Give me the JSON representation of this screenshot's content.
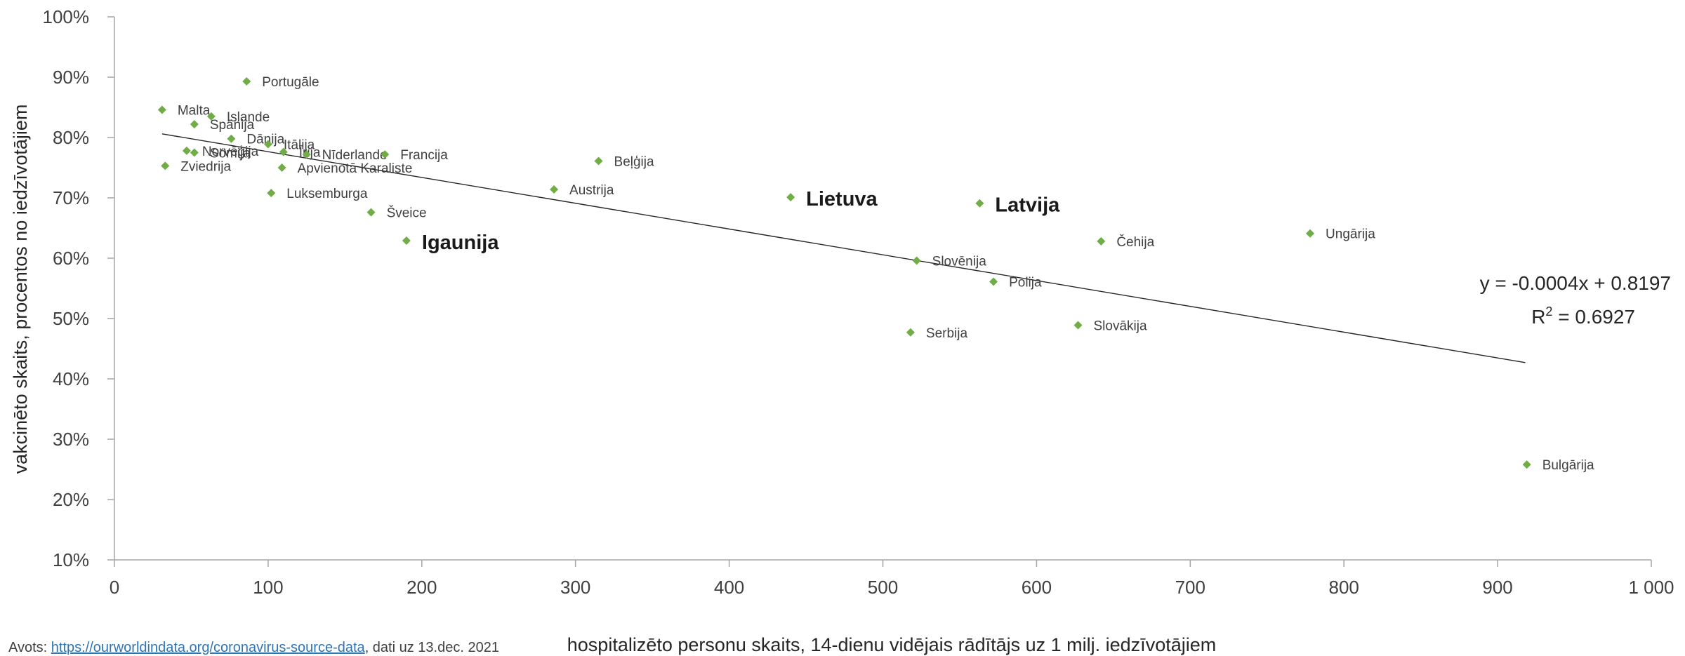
{
  "chart_data": {
    "type": "scatter",
    "title": "",
    "xlabel": "hospitalizēto personu skaits, 14-dienu vidējais rādītājs uz 1 milj. iedzīvotājiem",
    "ylabel": "vakcinēto skaits, procentos no iedzīvotājiem",
    "xlim": [
      0,
      1000
    ],
    "ylim": [
      10,
      100
    ],
    "x_ticks": [
      0,
      100,
      200,
      300,
      400,
      500,
      600,
      700,
      800,
      900,
      1000
    ],
    "x_tick_labels": [
      "0",
      "100",
      "200",
      "300",
      "400",
      "500",
      "600",
      "700",
      "800",
      "900",
      "1 000"
    ],
    "y_ticks": [
      10,
      20,
      30,
      40,
      50,
      60,
      70,
      80,
      90,
      100
    ],
    "y_tick_labels": [
      "10%",
      "20%",
      "30%",
      "40%",
      "50%",
      "60%",
      "70%",
      "80%",
      "90%",
      "100%"
    ],
    "grid": false,
    "color": "#70ad47",
    "points": [
      {
        "label": "Malta",
        "x": 31,
        "y": 84.6
      },
      {
        "label": "Portugāle",
        "x": 86,
        "y": 89.3
      },
      {
        "label": "Islande",
        "x": 63,
        "y": 83.5
      },
      {
        "label": "Spānija",
        "x": 52,
        "y": 82.2
      },
      {
        "label": "Dānija",
        "x": 76,
        "y": 79.8
      },
      {
        "label": "Itālija",
        "x": 100,
        "y": 78.9
      },
      {
        "label": "Īrija",
        "x": 110,
        "y": 77.6
      },
      {
        "label": "Nīderlande",
        "x": 125,
        "y": 77.2
      },
      {
        "label": "Norvēģija",
        "x": 47,
        "y": 77.8
      },
      {
        "label": "Somija",
        "x": 52,
        "y": 77.5
      },
      {
        "label": "Zviedrija",
        "x": 33,
        "y": 75.3
      },
      {
        "label": "Apvienotā Karaliste",
        "x": 109,
        "y": 75.0
      },
      {
        "label": "Francija",
        "x": 176,
        "y": 77.2
      },
      {
        "label": "Beļģija",
        "x": 315,
        "y": 76.1
      },
      {
        "label": "Luksemburga",
        "x": 102,
        "y": 70.8
      },
      {
        "label": "Austrija",
        "x": 286,
        "y": 71.4
      },
      {
        "label": "Šveice",
        "x": 167,
        "y": 67.6
      },
      {
        "label": "Igaunija",
        "x": 190,
        "y": 62.9,
        "bold": true
      },
      {
        "label": "Lietuva",
        "x": 440,
        "y": 70.1,
        "bold": true
      },
      {
        "label": "Latvija",
        "x": 563,
        "y": 69.1,
        "bold": true
      },
      {
        "label": "Čehija",
        "x": 642,
        "y": 62.8
      },
      {
        "label": "Ungārija",
        "x": 778,
        "y": 64.1
      },
      {
        "label": "Slovēnija",
        "x": 522,
        "y": 59.6
      },
      {
        "label": "Polija",
        "x": 572,
        "y": 56.1
      },
      {
        "label": "Slovākija",
        "x": 627,
        "y": 48.9
      },
      {
        "label": "Serbija",
        "x": 518,
        "y": 47.7
      },
      {
        "label": "Bulgārija",
        "x": 919,
        "y": 25.8
      }
    ],
    "trendline": {
      "type": "linear",
      "x_start": 31,
      "x_end": 918,
      "y_start": 80.6,
      "y_end": 42.7
    },
    "equation_line1": "y = -0.0004x + 0.8197",
    "r2_prefix": "R",
    "r2_sup": "2",
    "r2_value": " = 0.6927"
  },
  "source": {
    "prefix": "Avots: ",
    "link_text": "https://ourworldindata.org/coronavirus-source-data",
    "suffix": ", dati uz 13.dec. 2021"
  }
}
